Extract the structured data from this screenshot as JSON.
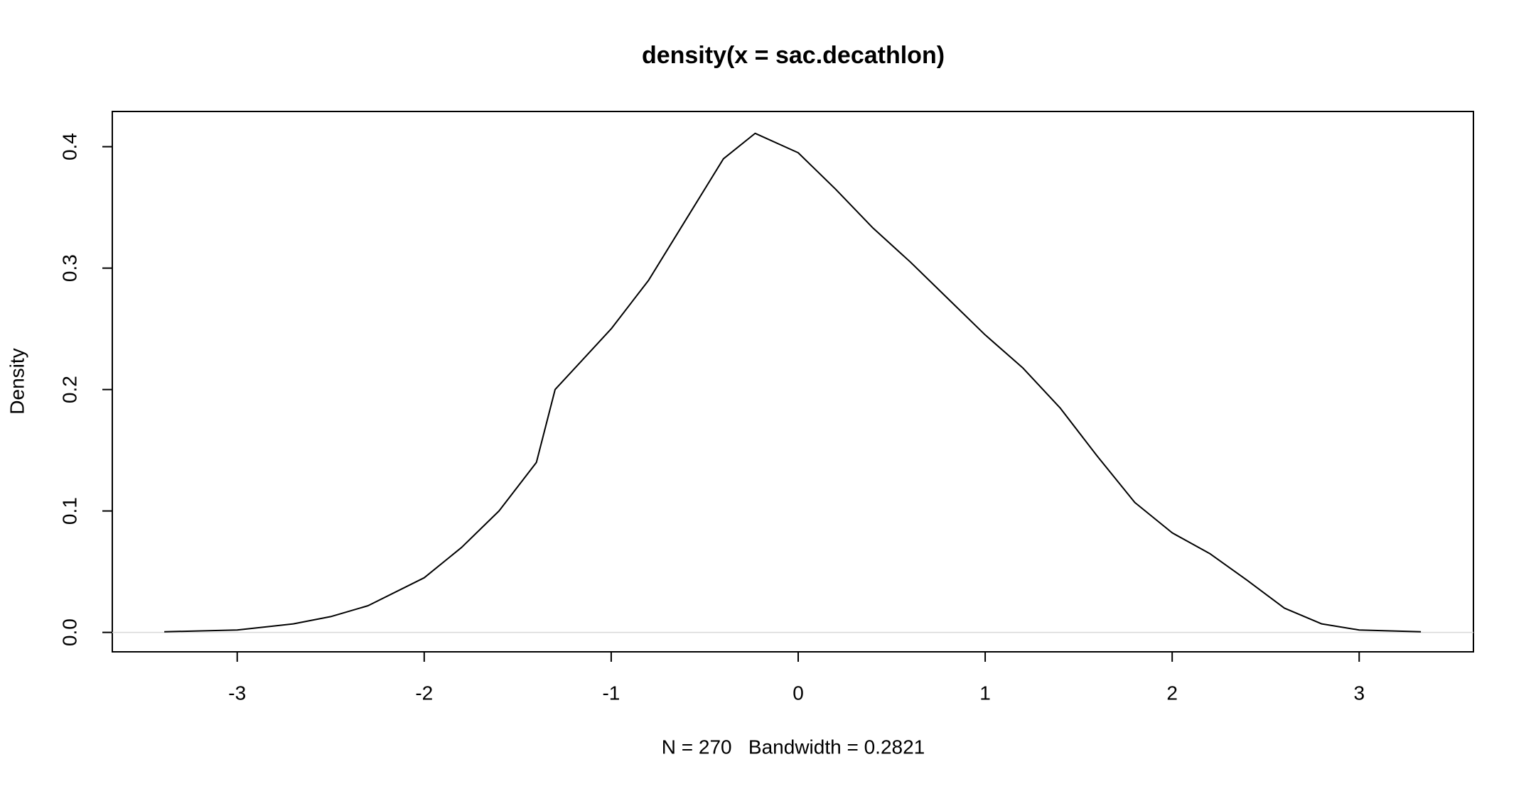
{
  "chart_data": {
    "type": "line",
    "title": "density(x = sac.decathlon)",
    "x_label": "N = 270   Bandwidth = 0.2821",
    "y_label": "Density",
    "x": [
      -3.39,
      -3.0,
      -2.7,
      -2.5,
      -2.3,
      -2.0,
      -1.8,
      -1.6,
      -1.4,
      -1.3,
      -1.0,
      -0.8,
      -0.6,
      -0.4,
      -0.23,
      0.0,
      0.2,
      0.4,
      0.6,
      0.8,
      1.0,
      1.2,
      1.4,
      1.6,
      1.8,
      2.0,
      2.2,
      2.4,
      2.6,
      2.8,
      3.0,
      3.33
    ],
    "series": [
      {
        "name": "density",
        "color": "#000000",
        "values": [
          0.0005,
          0.002,
          0.007,
          0.013,
          0.022,
          0.045,
          0.07,
          0.1,
          0.14,
          0.2,
          0.25,
          0.29,
          0.34,
          0.39,
          0.411,
          0.395,
          0.365,
          0.333,
          0.305,
          0.275,
          0.245,
          0.218,
          0.185,
          0.145,
          0.107,
          0.082,
          0.065,
          0.043,
          0.02,
          0.007,
          0.002,
          0.0005
        ]
      }
    ],
    "xlim": [
      -3.668,
      3.611
    ],
    "ylim": [
      -0.016,
      0.429
    ],
    "xticks": [
      -3,
      -2,
      -1,
      0,
      1,
      2,
      3
    ],
    "yticks": [
      {
        "value": 0,
        "label": "0.0"
      },
      0.1,
      0.2,
      0.3,
      0.4
    ],
    "zero_line_color": "#d9d9d9"
  }
}
